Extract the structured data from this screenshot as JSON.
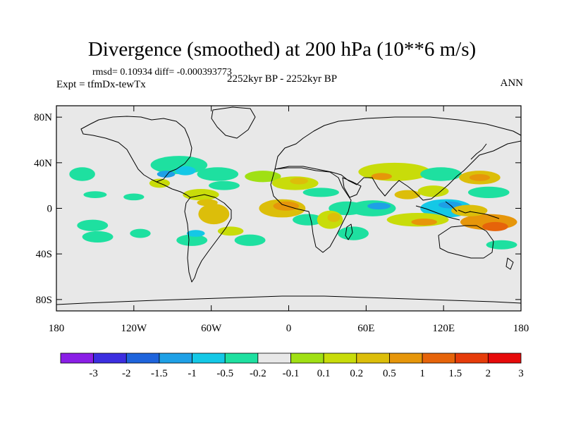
{
  "title": "Divergence (smoothed) at 200 hPa (10**6 m/s)",
  "stats": "rmsd= 0.10934 diff= -0.000393773",
  "experiment": "Expt = tfmDx-tewTx",
  "period": "2252kyr BP - 2252kyr BP",
  "season": "ANN",
  "map": {
    "lat_ticks": [
      {
        "label": "80N",
        "lat": 80
      },
      {
        "label": "40N",
        "lat": 40
      },
      {
        "label": "0",
        "lat": 0
      },
      {
        "label": "40S",
        "lat": -40
      },
      {
        "label": "80S",
        "lat": -80
      }
    ],
    "lon_ticks": [
      {
        "label": "180",
        "lon": -180
      },
      {
        "label": "120W",
        "lon": -120
      },
      {
        "label": "60W",
        "lon": -60
      },
      {
        "label": "0",
        "lon": 0
      },
      {
        "label": "60E",
        "lon": 60
      },
      {
        "label": "120E",
        "lon": 120
      },
      {
        "label": "180",
        "lon": 180
      }
    ],
    "background_color": "#e8e8e8"
  },
  "colorbar": {
    "colors": [
      "#8a1ee6",
      "#3c2ee0",
      "#1e64dc",
      "#1ea0e6",
      "#14c8e6",
      "#1ee0a0",
      "#e8e8e8",
      "#a0e014",
      "#c8dc0a",
      "#dcbe0a",
      "#e6960a",
      "#e6640a",
      "#e63c0a",
      "#e60a0a"
    ],
    "labels": [
      "-3",
      "-2",
      "-1.5",
      "-1",
      "-0.5",
      "-0.2",
      "-0.1",
      "0.1",
      "0.2",
      "0.5",
      "1",
      "1.5",
      "2",
      "3"
    ]
  },
  "anomaly_patches": [
    {
      "lon": -160,
      "lat": 30,
      "rlon": 10,
      "rlat": 6,
      "cat": 5
    },
    {
      "lon": -150,
      "lat": 12,
      "rlon": 9,
      "rlat": 3,
      "cat": 5
    },
    {
      "lon": -152,
      "lat": -15,
      "rlon": 12,
      "rlat": 5,
      "cat": 5
    },
    {
      "lon": -148,
      "lat": -25,
      "rlon": 12,
      "rlat": 5,
      "cat": 5
    },
    {
      "lon": -120,
      "lat": 10,
      "rlon": 8,
      "rlat": 3,
      "cat": 5
    },
    {
      "lon": -115,
      "lat": -22,
      "rlon": 8,
      "rlat": 4,
      "cat": 5
    },
    {
      "lon": -85,
      "lat": 38,
      "rlon": 22,
      "rlat": 8,
      "cat": 5
    },
    {
      "lon": -80,
      "lat": 33,
      "rlon": 8,
      "rlat": 4,
      "cat": 4
    },
    {
      "lon": -100,
      "lat": 22,
      "rlon": 8,
      "rlat": 4,
      "cat": 8
    },
    {
      "lon": -95,
      "lat": 30,
      "rlon": 7,
      "rlat": 3,
      "cat": 3
    },
    {
      "lon": -68,
      "lat": 12,
      "rlon": 14,
      "rlat": 5,
      "cat": 8
    },
    {
      "lon": -63,
      "lat": 5,
      "rlon": 8,
      "rlat": 3,
      "cat": 9
    },
    {
      "lon": -58,
      "lat": -5,
      "rlon": 12,
      "rlat": 9,
      "cat": 9
    },
    {
      "lon": -55,
      "lat": 30,
      "rlon": 16,
      "rlat": 6,
      "cat": 5
    },
    {
      "lon": -75,
      "lat": -28,
      "rlon": 12,
      "rlat": 5,
      "cat": 5
    },
    {
      "lon": -72,
      "lat": -22,
      "rlon": 7,
      "rlat": 3,
      "cat": 4
    },
    {
      "lon": -45,
      "lat": -20,
      "rlon": 10,
      "rlat": 4,
      "cat": 8
    },
    {
      "lon": -50,
      "lat": 20,
      "rlon": 12,
      "rlat": 4,
      "cat": 5
    },
    {
      "lon": -30,
      "lat": -28,
      "rlon": 12,
      "rlat": 5,
      "cat": 5
    },
    {
      "lon": -20,
      "lat": 28,
      "rlon": 14,
      "rlat": 5,
      "cat": 7
    },
    {
      "lon": 5,
      "lat": 22,
      "rlon": 18,
      "rlat": 6,
      "cat": 8
    },
    {
      "lon": 8,
      "lat": 24,
      "rlon": 7,
      "rlat": 3,
      "cat": 9
    },
    {
      "lon": -5,
      "lat": 0,
      "rlon": 18,
      "rlat": 8,
      "cat": 9
    },
    {
      "lon": -2,
      "lat": 2,
      "rlon": 10,
      "rlat": 4,
      "cat": 10
    },
    {
      "lon": 15,
      "lat": -10,
      "rlon": 12,
      "rlat": 5,
      "cat": 5
    },
    {
      "lon": 25,
      "lat": 14,
      "rlon": 14,
      "rlat": 4,
      "cat": 5
    },
    {
      "lon": 45,
      "lat": 0,
      "rlon": 14,
      "rlat": 6,
      "cat": 5
    },
    {
      "lon": 65,
      "lat": 0,
      "rlon": 18,
      "rlat": 7,
      "cat": 5
    },
    {
      "lon": 70,
      "lat": 2,
      "rlon": 9,
      "rlat": 3,
      "cat": 3
    },
    {
      "lon": 32,
      "lat": -10,
      "rlon": 10,
      "rlat": 8,
      "cat": 8
    },
    {
      "lon": 35,
      "lat": -8,
      "rlon": 5,
      "rlat": 4,
      "cat": 9
    },
    {
      "lon": 50,
      "lat": -22,
      "rlon": 12,
      "rlat": 6,
      "cat": 5
    },
    {
      "lon": 82,
      "lat": 32,
      "rlon": 28,
      "rlat": 8,
      "cat": 8
    },
    {
      "lon": 72,
      "lat": 28,
      "rlon": 8,
      "rlat": 3,
      "cat": 10
    },
    {
      "lon": 118,
      "lat": 30,
      "rlon": 16,
      "rlat": 6,
      "cat": 5
    },
    {
      "lon": 112,
      "lat": 15,
      "rlon": 12,
      "rlat": 5,
      "cat": 8
    },
    {
      "lon": 92,
      "lat": 12,
      "rlon": 10,
      "rlat": 4,
      "cat": 9
    },
    {
      "lon": 122,
      "lat": 0,
      "rlon": 20,
      "rlat": 8,
      "cat": 4
    },
    {
      "lon": 125,
      "lat": 3,
      "rlon": 9,
      "rlat": 3,
      "cat": 3
    },
    {
      "lon": 100,
      "lat": -10,
      "rlon": 24,
      "rlat": 6,
      "cat": 8
    },
    {
      "lon": 105,
      "lat": -12,
      "rlon": 10,
      "rlat": 3,
      "cat": 10
    },
    {
      "lon": 148,
      "lat": 27,
      "rlon": 16,
      "rlat": 6,
      "cat": 9
    },
    {
      "lon": 148,
      "lat": 27,
      "rlon": 8,
      "rlat": 3,
      "cat": 10
    },
    {
      "lon": 155,
      "lat": 14,
      "rlon": 16,
      "rlat": 5,
      "cat": 5
    },
    {
      "lon": 155,
      "lat": -12,
      "rlon": 22,
      "rlat": 7,
      "cat": 10
    },
    {
      "lon": 160,
      "lat": -16,
      "rlon": 10,
      "rlat": 4,
      "cat": 11
    },
    {
      "lon": 165,
      "lat": -32,
      "rlon": 12,
      "rlat": 4,
      "cat": 5
    },
    {
      "lon": 140,
      "lat": -2,
      "rlon": 14,
      "rlat": 5,
      "cat": 9
    }
  ]
}
